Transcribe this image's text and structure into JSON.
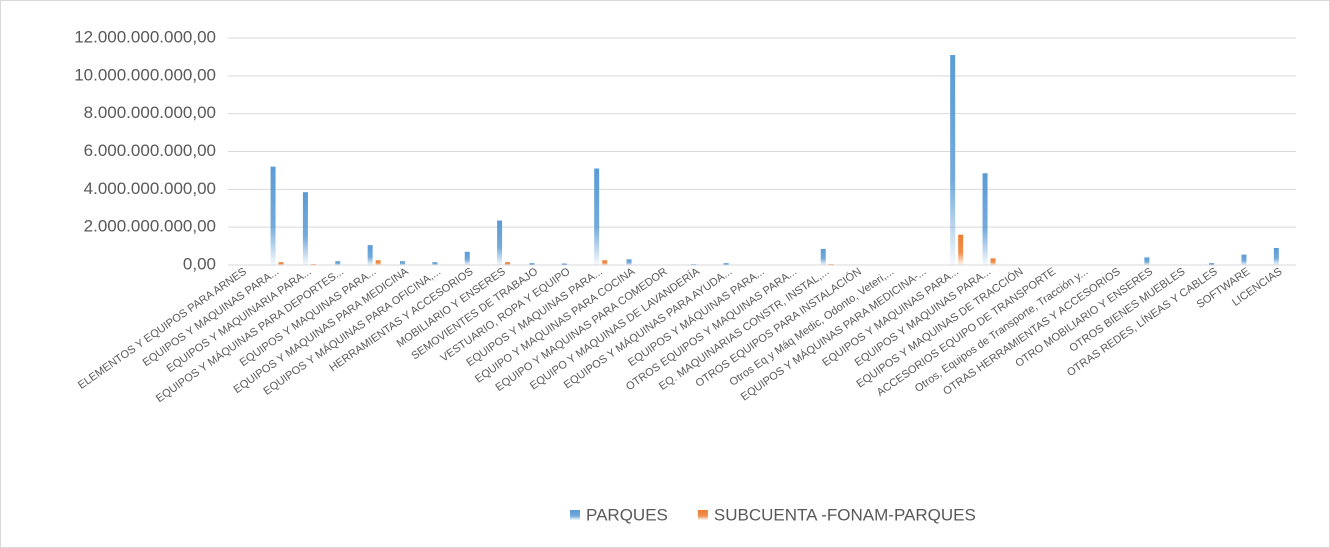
{
  "chart_data": {
    "type": "bar",
    "categories": [
      "ELEMENTOS Y EQUIPOS PARA ARNES",
      "EQUIPOS Y MAQUINAS PARA...",
      "EQUIPOS Y MAQUINARIA PARA...",
      "EQUIPOS Y MÁQUINAS PARA DEPORTES...",
      "EQUIPOS Y MAQUINAS PARA...",
      "EQUIPOS Y MAQUINAS PARA MEDICINA",
      "EQUIPOS Y MÁQUINAS PARA OFICINA,...",
      "HERRAMIENTAS Y ACCESORIOS",
      "MOBILIARIO Y ENSERES",
      "SEMOVIENTES DE TRABAJO",
      "VESTUARIO, ROPA Y EQUIPO",
      "EQUIPOS Y MAQUINAS PARA...",
      "EQUIPO Y MAQUINAS  PARA COCINA",
      "EQUIPO Y MAQUINAS  PARA COMEDOR",
      "EQUIPO Y MAQUINAS  DE LAVANDERÍA",
      "EQUIPOS Y MÁQUINAS PARA AYUDA...",
      "EQUIPOS Y MÁQUINAS PARA...",
      "OTROS EQUIPOS Y MAQUINAS PARA...",
      "EQ. MAQUINARIAS CONSTR, INSTAL,...",
      "OTROS EQUIPOS PARA INSTALACIÓN",
      "Otros Eq y Máq Medic, Odonto, Veteri,...",
      "EQUIPOS Y MÁQUINAS PARA MEDICINA-...",
      "EQUIPOS Y MAQUINAS PARA...",
      "EQUIPOS Y MAQUINAS PARA...",
      "EQUIPOS Y MAQUINAS DE TRACCIÓN",
      "ACCESORIOS EQUIPO DE TRANSPORTE",
      "Otros, Equipos de Transporte, Tracción y...",
      "OTRAS HERRAMIENTAS Y ACCESORIOS",
      "OTRO MOBILIARIO Y ENSERES",
      "OTROS BIENES MUEBLES",
      "OTRAS REDES, LÍNEAS Y CABLES",
      "SOFTWARE",
      "LICENCIAS"
    ],
    "series": [
      {
        "name": "PARQUES",
        "color": "#5b9bd5",
        "values": [
          0,
          5200000000,
          3850000000,
          200000000,
          1050000000,
          200000000,
          150000000,
          700000000,
          2350000000,
          100000000,
          80000000,
          5100000000,
          300000000,
          0,
          30000000,
          100000000,
          0,
          0,
          850000000,
          0,
          0,
          0,
          11100000000,
          4850000000,
          0,
          0,
          0,
          0,
          400000000,
          0,
          100000000,
          550000000,
          900000000
        ]
      },
      {
        "name": "SUBCUENTA -FONAM-PARQUES",
        "color": "#ed7d31",
        "values": [
          0,
          150000000,
          30000000,
          0,
          250000000,
          0,
          0,
          0,
          150000000,
          0,
          0,
          250000000,
          0,
          0,
          0,
          0,
          0,
          0,
          30000000,
          0,
          0,
          0,
          1600000000,
          350000000,
          0,
          0,
          0,
          0,
          0,
          0,
          0,
          0,
          0
        ]
      }
    ],
    "ylim": [
      0,
      12000000000
    ],
    "yticks": [
      {
        "value": 0,
        "label": "0,00"
      },
      {
        "value": 2000000000,
        "label": "2.000.000.000,00"
      },
      {
        "value": 4000000000,
        "label": "4.000.000.000,00"
      },
      {
        "value": 6000000000,
        "label": "6.000.000.000,00"
      },
      {
        "value": 8000000000,
        "label": "8.000.000.000,00"
      },
      {
        "value": 10000000000,
        "label": "10.000.000.000,00"
      },
      {
        "value": 12000000000,
        "label": "12.000.000.000,00"
      }
    ],
    "grid": true,
    "legend": "bottom"
  }
}
